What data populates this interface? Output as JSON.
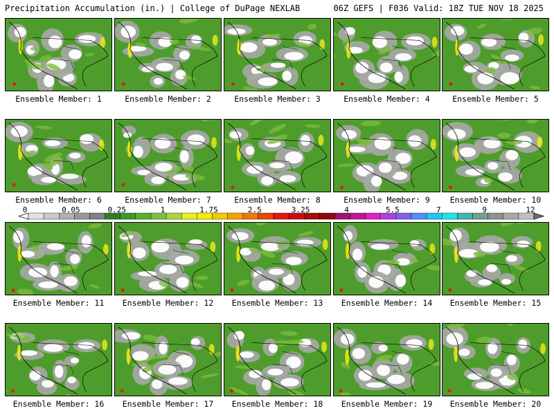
{
  "header": {
    "left_title": "Precipitation Accumulation (in.) | College of DuPage NEXLAB",
    "right_title": "06Z GEFS | F036 Valid: 18Z TUE NOV 18 2025"
  },
  "members": [
    {
      "label": "Ensemble Member: 1",
      "number": 1
    },
    {
      "label": "Ensemble Member: 2",
      "number": 2
    },
    {
      "label": "Ensemble Member: 3",
      "number": 3
    },
    {
      "label": "Ensemble Member: 4",
      "number": 4
    },
    {
      "label": "Ensemble Member: 5",
      "number": 5
    },
    {
      "label": "Ensemble Member: 6",
      "number": 6
    },
    {
      "label": "Ensemble Member: 7",
      "number": 7
    },
    {
      "label": "Ensemble Member: 8",
      "number": 8
    },
    {
      "label": "Ensemble Member: 9",
      "number": 9
    },
    {
      "label": "Ensemble Member: 10",
      "number": 10
    },
    {
      "label": "Ensemble Member: 11",
      "number": 11
    },
    {
      "label": "Ensemble Member: 12",
      "number": 12
    },
    {
      "label": "Ensemble Member: 13",
      "number": 13
    },
    {
      "label": "Ensemble Member: 14",
      "number": 14
    },
    {
      "label": "Ensemble Member: 15",
      "number": 15
    },
    {
      "label": "Ensemble Member: 16",
      "number": 16
    },
    {
      "label": "Ensemble Member: 17",
      "number": 17
    },
    {
      "label": "Ensemble Member: 18",
      "number": 18
    },
    {
      "label": "Ensemble Member: 19",
      "number": 19
    },
    {
      "label": "Ensemble Member: 20",
      "number": 20
    }
  ],
  "colorbar": {
    "ticks": [
      "0",
      "0.05",
      "0.25",
      "1",
      "1.75",
      "2.5",
      "3.25",
      "4",
      "5.5",
      "7",
      "9",
      "12"
    ],
    "colors": [
      "#e0e0e0",
      "#c8c8c8",
      "#b0b0b0",
      "#989898",
      "#808080",
      "#2f7f22",
      "#3a9a2a",
      "#57b02f",
      "#79c23a",
      "#a8d63e",
      "#e5f01f",
      "#f6ee00",
      "#f8c800",
      "#f7a000",
      "#f07800",
      "#e84800",
      "#e01a10",
      "#c80f0f",
      "#a80a0a",
      "#8c0a0a",
      "#a0136e",
      "#c2168f",
      "#e020c0",
      "#b040e0",
      "#8060f0",
      "#5090ff",
      "#20c8f0",
      "#1ee6e6",
      "#40b4b0",
      "#70a090",
      "#909090",
      "#a8a8a8",
      "#c0c0c0"
    ],
    "palette": {
      "green": "#4e9d2c",
      "light_green": "#7dbc3c",
      "gray": "#a9a9a9",
      "white": "#ffffff",
      "yellow": "#f2ec1a",
      "red": "#e01a10"
    }
  }
}
